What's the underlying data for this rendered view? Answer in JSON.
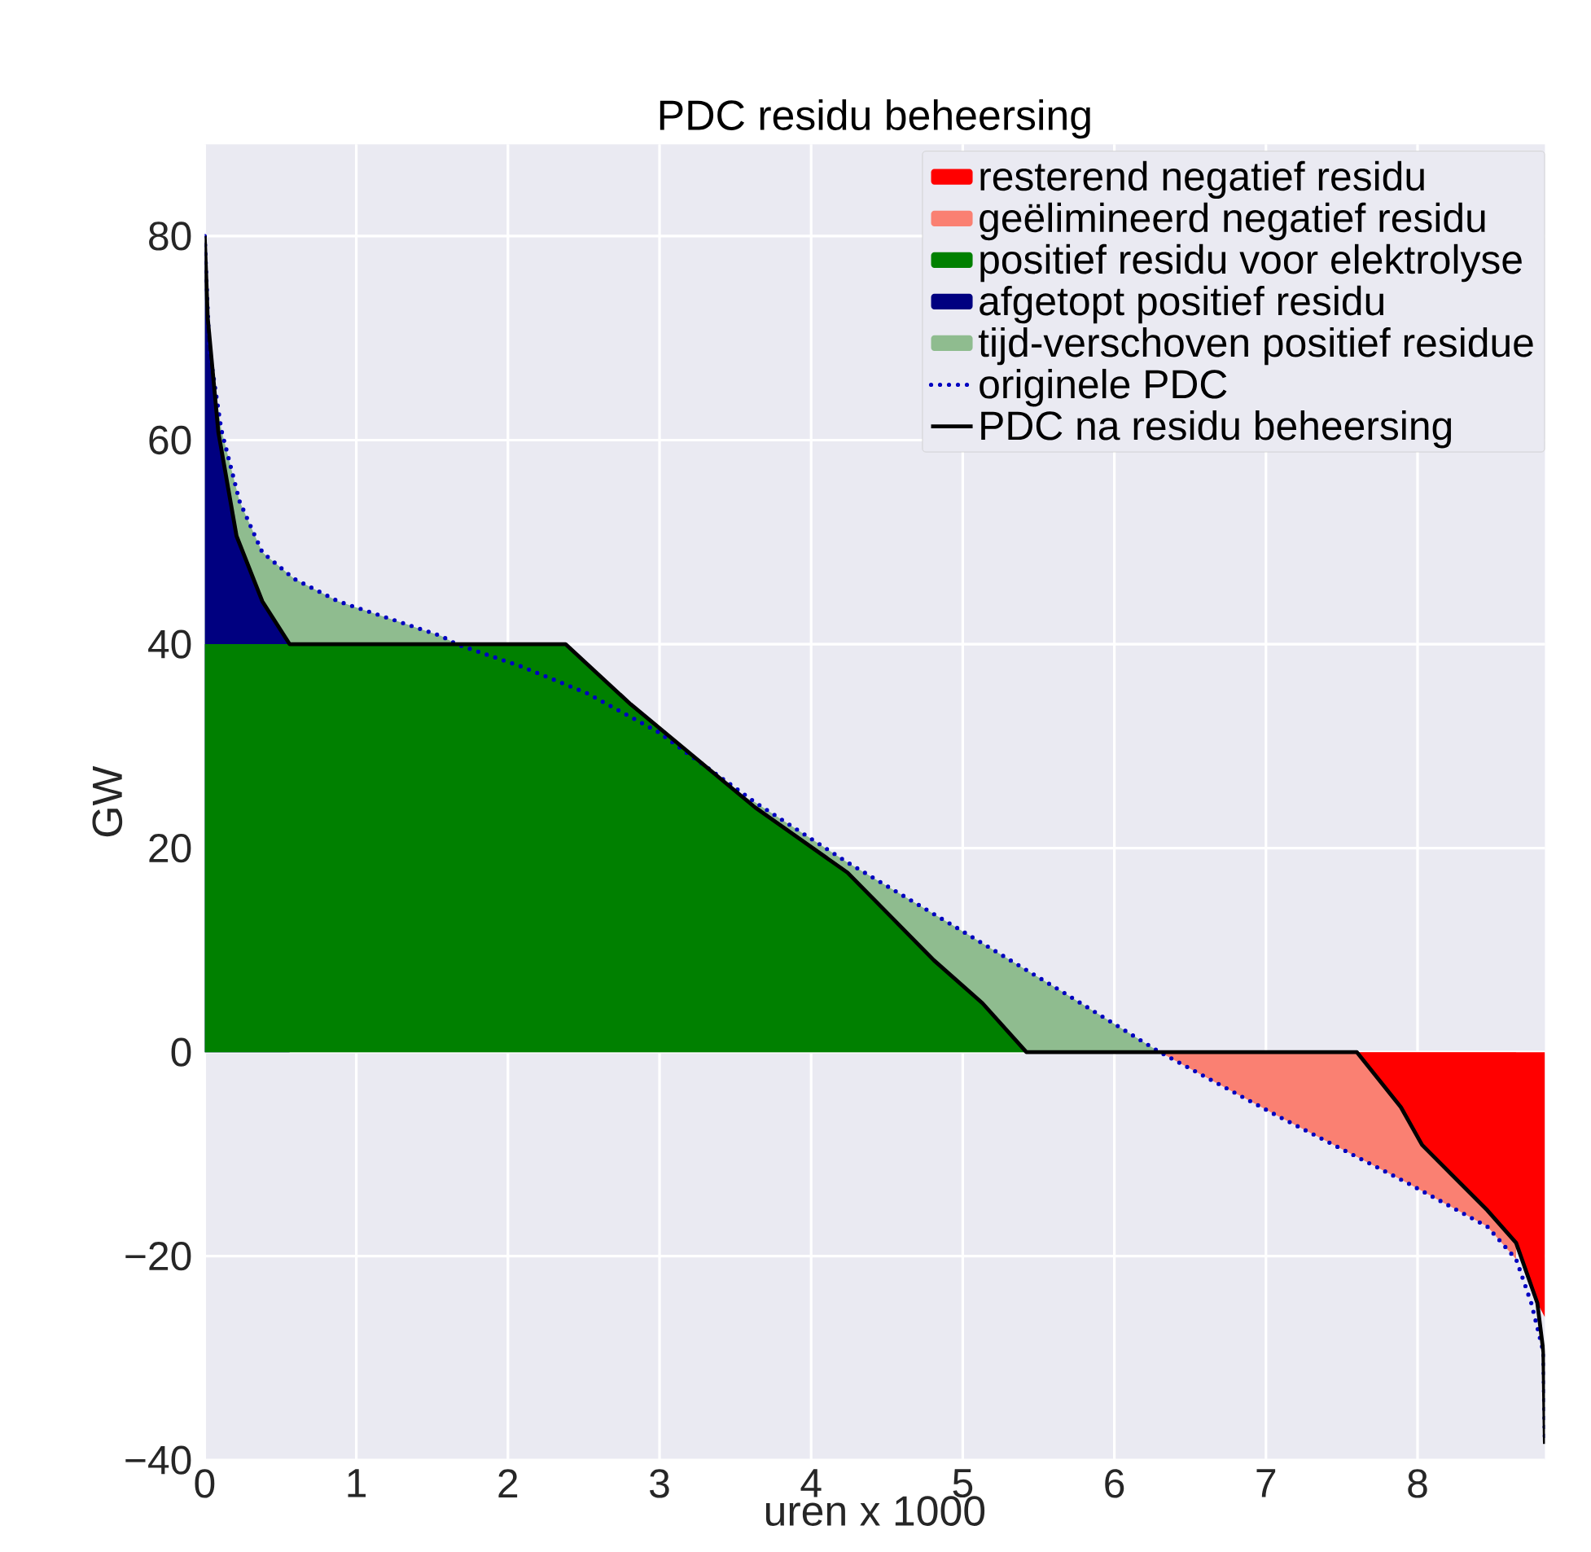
{
  "chart_data": {
    "type": "area",
    "title": "PDC residu beheersing",
    "xlabel": "uren x 1000",
    "ylabel": "GW",
    "xlim": [
      0,
      8.84
    ],
    "ylim": [
      -40,
      89
    ],
    "xticks": [
      0,
      1,
      2,
      3,
      4,
      5,
      6,
      7,
      8
    ],
    "yticks": [
      {
        "value": -40,
        "label": "−40"
      },
      {
        "value": -20,
        "label": "−20"
      },
      0,
      20,
      40,
      60,
      80
    ],
    "grid": true,
    "legend": "top right",
    "series": [
      {
        "name": "resterend negatief residu",
        "color": "#ff0000",
        "x": [
          7.6,
          7.89,
          8.03,
          8.46,
          8.65,
          8.79,
          8.84
        ],
        "values": [
          0,
          -5.4,
          -9.1,
          -15.5,
          -18.7,
          -24.6,
          -26
        ]
      },
      {
        "name": "geëlimineerd negatief  residu",
        "color": "#fa8072",
        "x": [
          6.3,
          7.07,
          7.93,
          8.46,
          8.65
        ],
        "values": [
          0,
          -6.2,
          -12.8,
          -17.1,
          -20.3
        ]
      },
      {
        "name": "positief residu voor elektrolyse",
        "color": "#008000",
        "x": [
          0,
          2.38,
          2.81,
          3.3,
          3.63,
          4.24,
          4.81,
          5.13,
          5.42
        ],
        "values": [
          40,
          40,
          34.1,
          28,
          24,
          17.6,
          9,
          4.8,
          0
        ]
      },
      {
        "name": "afgetopt positief residu",
        "color": "#000080",
        "x": [
          0,
          0.02,
          0.09,
          0.21,
          0.38,
          0.56
        ],
        "values": [
          80,
          72,
          60.8,
          50.6,
          44.2,
          40
        ]
      },
      {
        "name": "tijd-verschoven positief residue",
        "color": "#8fbc8f",
        "x": [
          0,
          0.03,
          0.11,
          0.23,
          0.38,
          0.59,
          0.88,
          1.2,
          1.56,
          1.66,
          2.09,
          2.52,
          2.99,
          3.63,
          4.24,
          4.96,
          5.67,
          6.3
        ],
        "values": [
          80,
          69,
          61,
          54,
          49,
          46.4,
          44.2,
          42.6,
          40.8,
          40,
          null,
          null,
          null,
          24.5,
          18.6,
          12.2,
          5.8,
          0
        ]
      },
      {
        "name": "originele PDC",
        "type": "line",
        "line_style": "dotted",
        "color": "#0000c0",
        "x": [
          0,
          0.03,
          0.11,
          0.23,
          0.38,
          0.59,
          0.88,
          1.2,
          1.56,
          1.66,
          2.09,
          2.52,
          2.99,
          3.63,
          4.24,
          4.96,
          5.67,
          6.3,
          7.07,
          7.93,
          8.46,
          8.65,
          8.75,
          8.83,
          8.84
        ],
        "values": [
          80,
          69,
          61,
          54,
          49,
          46.4,
          44.2,
          42.6,
          40.8,
          40,
          37.8,
          35.2,
          31.4,
          24.5,
          18.6,
          12.2,
          5.8,
          0,
          -6.2,
          -12.8,
          -17.1,
          -20.3,
          -24.6,
          -29.4,
          -38.4
        ]
      },
      {
        "name": "PDC na residu beheersing",
        "type": "line",
        "line_style": "solid",
        "color": "#000000",
        "x": [
          0,
          0.02,
          0.09,
          0.21,
          0.38,
          0.56,
          2.38,
          2.81,
          3.63,
          4.24,
          4.81,
          5.13,
          5.42,
          7.6,
          7.89,
          8.03,
          8.46,
          8.65,
          8.79,
          8.83,
          8.84
        ],
        "values": [
          80,
          72,
          60.8,
          50.6,
          44.2,
          40,
          40,
          34.1,
          24,
          17.6,
          9,
          4.8,
          0,
          0,
          -5.4,
          -9.1,
          -15.5,
          -18.7,
          -24.6,
          -29.4,
          -38.4
        ]
      }
    ]
  }
}
